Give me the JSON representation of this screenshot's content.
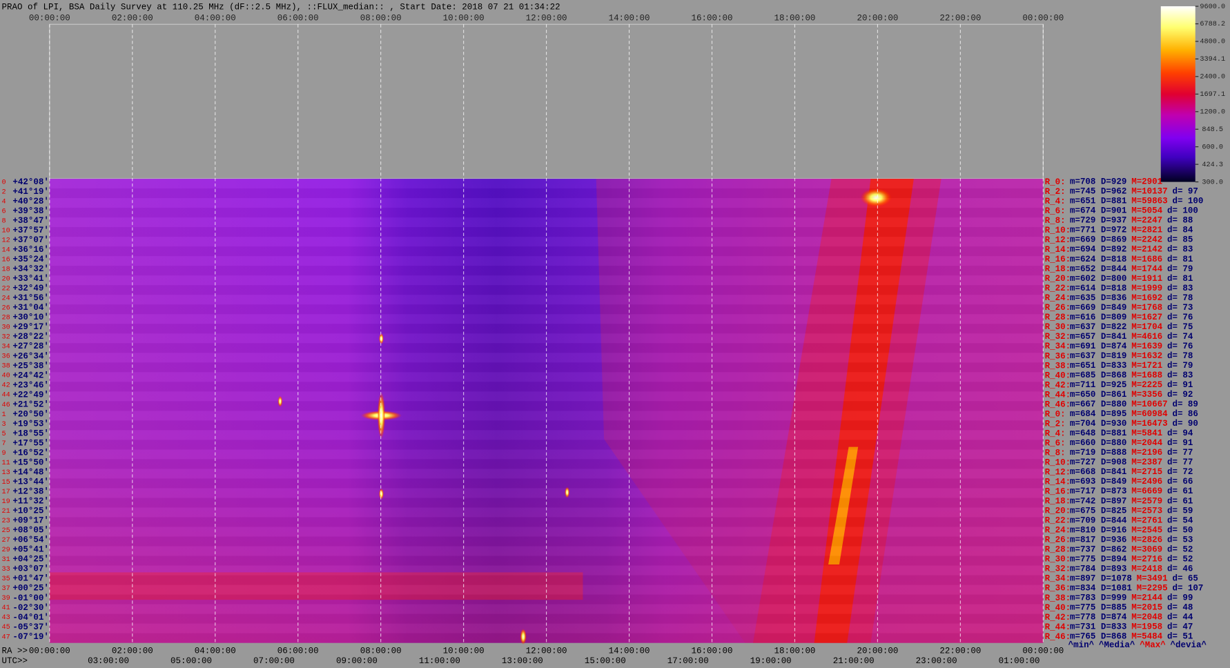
{
  "header": {
    "title": "PRAO of LPI, BSA Daily Survey at 110.25 MHz (dF::2.5 MHz), ::FLUX_median:: , Start Date: 2018 07 21 01:34:22"
  },
  "top_axis": {
    "labels": [
      "00:00:00",
      "02:00:00",
      "04:00:00",
      "06:00:00",
      "08:00:00",
      "10:00:00",
      "12:00:00",
      "14:00:00",
      "16:00:00",
      "18:00:00",
      "20:00:00",
      "22:00:00",
      "00:00:00"
    ]
  },
  "ra_axis": {
    "label": "RA >>",
    "labels": [
      "00:00:00",
      "02:00:00",
      "04:00:00",
      "06:00:00",
      "08:00:00",
      "10:00:00",
      "12:00:00",
      "14:00:00",
      "16:00:00",
      "18:00:00",
      "20:00:00",
      "22:00:00",
      "00:00:00"
    ]
  },
  "utc_axis": {
    "label": "UTC>>",
    "labels": [
      "03:00:00",
      "05:00:00",
      "07:00:00",
      "09:00:00",
      "11:00:00",
      "13:00:00",
      "15:00:00",
      "17:00:00",
      "19:00:00",
      "21:00:00",
      "23:00:00",
      "01:00:00"
    ]
  },
  "rows": [
    {
      "index": "0",
      "dec": "+42°08'"
    },
    {
      "index": "2",
      "dec": "+41°19'"
    },
    {
      "index": "4",
      "dec": "+40°28'"
    },
    {
      "index": "6",
      "dec": "+39°38'"
    },
    {
      "index": "8",
      "dec": "+38°47'"
    },
    {
      "index": "10",
      "dec": "+37°57'"
    },
    {
      "index": "12",
      "dec": "+37°07'"
    },
    {
      "index": "14",
      "dec": "+36°16'"
    },
    {
      "index": "16",
      "dec": "+35°24'"
    },
    {
      "index": "18",
      "dec": "+34°32'"
    },
    {
      "index": "20",
      "dec": "+33°41'"
    },
    {
      "index": "22",
      "dec": "+32°49'"
    },
    {
      "index": "24",
      "dec": "+31°56'"
    },
    {
      "index": "26",
      "dec": "+31°04'"
    },
    {
      "index": "28",
      "dec": "+30°10'"
    },
    {
      "index": "30",
      "dec": "+29°17'"
    },
    {
      "index": "32",
      "dec": "+28°22'"
    },
    {
      "index": "34",
      "dec": "+27°28'"
    },
    {
      "index": "36",
      "dec": "+26°34'"
    },
    {
      "index": "38",
      "dec": "+25°38'"
    },
    {
      "index": "40",
      "dec": "+24°42'"
    },
    {
      "index": "42",
      "dec": "+23°46'"
    },
    {
      "index": "44",
      "dec": "+22°49'"
    },
    {
      "index": "46",
      "dec": "+21°52'"
    },
    {
      "index": "1",
      "dec": "+20°50'"
    },
    {
      "index": "3",
      "dec": "+19°53'"
    },
    {
      "index": "5",
      "dec": "+18°55'"
    },
    {
      "index": "7",
      "dec": "+17°55'"
    },
    {
      "index": "9",
      "dec": "+16°52'"
    },
    {
      "index": "11",
      "dec": "+15°50'"
    },
    {
      "index": "13",
      "dec": "+14°48'"
    },
    {
      "index": "15",
      "dec": "+13°44'"
    },
    {
      "index": "17",
      "dec": "+12°38'"
    },
    {
      "index": "19",
      "dec": "+11°32'"
    },
    {
      "index": "21",
      "dec": "+10°25'"
    },
    {
      "index": "23",
      "dec": "+09°17'"
    },
    {
      "index": "25",
      "dec": "+08°05'"
    },
    {
      "index": "27",
      "dec": "+06°54'"
    },
    {
      "index": "29",
      "dec": "+05°41'"
    },
    {
      "index": "31",
      "dec": "+04°25'"
    },
    {
      "index": "33",
      "dec": "+03°07'"
    },
    {
      "index": "35",
      "dec": "+01°47'"
    },
    {
      "index": "37",
      "dec": "+00°25'"
    },
    {
      "index": "39",
      "dec": "-01°00'"
    },
    {
      "index": "41",
      "dec": "-02°30'"
    },
    {
      "index": "43",
      "dec": "-04°01'"
    },
    {
      "index": "45",
      "dec": "-05°37'"
    },
    {
      "index": "47",
      "dec": "-07°19'"
    }
  ],
  "stats": [
    {
      "r": "R_0:",
      "mD": "m=708 D=929",
      "M": "M=2901"
    },
    {
      "r": "R_2:",
      "mD": "m=745 D=962",
      "M": "M=10137",
      "d": "d= 97"
    },
    {
      "r": "R_4:",
      "mD": "m=651 D=881",
      "M": "M=59863",
      "d": "d= 100"
    },
    {
      "r": "R_6:",
      "mD": "m=674 D=901",
      "M": "M=5054",
      "d": "d= 100"
    },
    {
      "r": "R_8:",
      "mD": "m=729 D=937",
      "M": "M=2247",
      "d": "d= 88"
    },
    {
      "r": "R_10:",
      "mD": "m=771 D=972",
      "M": "M=2821",
      "d": "d= 84"
    },
    {
      "r": "R_12:",
      "mD": "m=669 D=869",
      "M": "M=2242",
      "d": "d= 85"
    },
    {
      "r": "R_14:",
      "mD": "m=694 D=892",
      "M": "M=2142",
      "d": "d= 83"
    },
    {
      "r": "R_16:",
      "mD": "m=624 D=818",
      "M": "M=1686",
      "d": "d= 81"
    },
    {
      "r": "R_18:",
      "mD": "m=652 D=844",
      "M": "M=1744",
      "d": "d= 79"
    },
    {
      "r": "R_20:",
      "mD": "m=602 D=800",
      "M": "M=1911",
      "d": "d= 81"
    },
    {
      "r": "R_22:",
      "mD": "m=614 D=818",
      "M": "M=1999",
      "d": "d= 83"
    },
    {
      "r": "R_24:",
      "mD": "m=635 D=836",
      "M": "M=1692",
      "d": "d= 78"
    },
    {
      "r": "R_26:",
      "mD": "m=669 D=849",
      "M": "M=1768",
      "d": "d= 73"
    },
    {
      "r": "R_28:",
      "mD": "m=616 D=809",
      "M": "M=1627",
      "d": "d= 76"
    },
    {
      "r": "R_30:",
      "mD": "m=637 D=822",
      "M": "M=1704",
      "d": "d= 75"
    },
    {
      "r": "R_32:",
      "mD": "m=657 D=841",
      "M": "M=4616",
      "d": "d= 74"
    },
    {
      "r": "R_34:",
      "mD": "m=691 D=874",
      "M": "M=1639",
      "d": "d= 76"
    },
    {
      "r": "R_36:",
      "mD": "m=637 D=819",
      "M": "M=1632",
      "d": "d= 78"
    },
    {
      "r": "R_38:",
      "mD": "m=651 D=833",
      "M": "M=1721",
      "d": "d= 79"
    },
    {
      "r": "R_40:",
      "mD": "m=685 D=868",
      "M": "M=1688",
      "d": "d= 83"
    },
    {
      "r": "R_42:",
      "mD": "m=711 D=925",
      "M": "M=2225",
      "d": "d= 91"
    },
    {
      "r": "R_44:",
      "mD": "m=650 D=861",
      "M": "M=3356",
      "d": "d= 92"
    },
    {
      "r": "R_46:",
      "mD": "m=667 D=880",
      "M": "M=10667",
      "d": "d= 89"
    },
    {
      "r": "R_0:",
      "mD": "m=684 D=895",
      "M": "M=60984",
      "d": "d= 86"
    },
    {
      "r": "R_2:",
      "mD": "m=704 D=930",
      "M": "M=16473",
      "d": "d= 90"
    },
    {
      "r": "R_4:",
      "mD": "m=648 D=881",
      "M": "M=5841",
      "d": "d= 94"
    },
    {
      "r": "R_6:",
      "mD": "m=660 D=880",
      "M": "M=2044",
      "d": "d= 91"
    },
    {
      "r": "R_8:",
      "mD": "m=719 D=888",
      "M": "M=2196",
      "d": "d= 77"
    },
    {
      "r": "R_10:",
      "mD": "m=727 D=908",
      "M": "M=2387",
      "d": "d= 77"
    },
    {
      "r": "R_12:",
      "mD": "m=668 D=841",
      "M": "M=2715",
      "d": "d= 72"
    },
    {
      "r": "R_14:",
      "mD": "m=693 D=849",
      "M": "M=2496",
      "d": "d= 66"
    },
    {
      "r": "R_16:",
      "mD": "m=717 D=873",
      "M": "M=6669",
      "d": "d= 61"
    },
    {
      "r": "R_18:",
      "mD": "m=742 D=897",
      "M": "M=2579",
      "d": "d= 61"
    },
    {
      "r": "R_20:",
      "mD": "m=675 D=825",
      "M": "M=2573",
      "d": "d= 59"
    },
    {
      "r": "R_22:",
      "mD": "m=709 D=844",
      "M": "M=2761",
      "d": "d= 54"
    },
    {
      "r": "R_24:",
      "mD": "m=810 D=916",
      "M": "M=2545",
      "d": "d= 50"
    },
    {
      "r": "R_26:",
      "mD": "m=817 D=936",
      "M": "M=2826",
      "d": "d= 53"
    },
    {
      "r": "R_28:",
      "mD": "m=737 D=862",
      "M": "M=3069",
      "d": "d= 52"
    },
    {
      "r": "R_30:",
      "mD": "m=775 D=894",
      "M": "M=2716",
      "d": "d= 52"
    },
    {
      "r": "R_32:",
      "mD": "m=784 D=893",
      "M": "M=2418",
      "d": "d= 46"
    },
    {
      "r": "R_34:",
      "mD": "m=897 D=1078",
      "M": "M=3491",
      "d": "d= 65"
    },
    {
      "r": "R_36:",
      "mD": "m=834 D=1081",
      "M": "M=2295",
      "d": "d= 107"
    },
    {
      "r": "R_38:",
      "mD": "m=783 D=999",
      "M": "M=2144",
      "d": "d= 99"
    },
    {
      "r": "R_40:",
      "mD": "m=775 D=885",
      "M": "M=2015",
      "d": "d= 48"
    },
    {
      "r": "R_42:",
      "mD": "m=778 D=874",
      "M": "M=2048",
      "d": "d= 44"
    },
    {
      "r": "R_44:",
      "mD": "m=731 D=833",
      "M": "M=1958",
      "d": "d= 47"
    },
    {
      "r": "R_46:",
      "mD": "m=765 D=868",
      "M": "M=5484",
      "d": "d= 51"
    }
  ],
  "stats_footer": [
    {
      "text": "^min^",
      "color": "#00006e"
    },
    {
      "text": "^Media^",
      "color": "#00006e"
    },
    {
      "text": "^Max^",
      "color": "#e00000"
    },
    {
      "text": "^devia^",
      "color": "#00006e"
    }
  ],
  "colorbar": {
    "log": true,
    "clim": [
      300,
      9600
    ],
    "ticks": [
      {
        "value": 9600,
        "label": "9600.0"
      },
      {
        "value": 6788.2,
        "label": "6788.2"
      },
      {
        "value": 4800,
        "label": "4800.0"
      },
      {
        "value": 3394.1,
        "label": "3394.1"
      },
      {
        "value": 2400,
        "label": "2400.0"
      },
      {
        "value": 1697.1,
        "label": "1697.1"
      },
      {
        "value": 1200,
        "label": "1200.0"
      },
      {
        "value": 848.5,
        "label": "848.5"
      },
      {
        "value": 600,
        "label": "600.0"
      },
      {
        "value": 424.3,
        "label": "424.3"
      },
      {
        "value": 300,
        "label": "300.0"
      }
    ]
  }
}
